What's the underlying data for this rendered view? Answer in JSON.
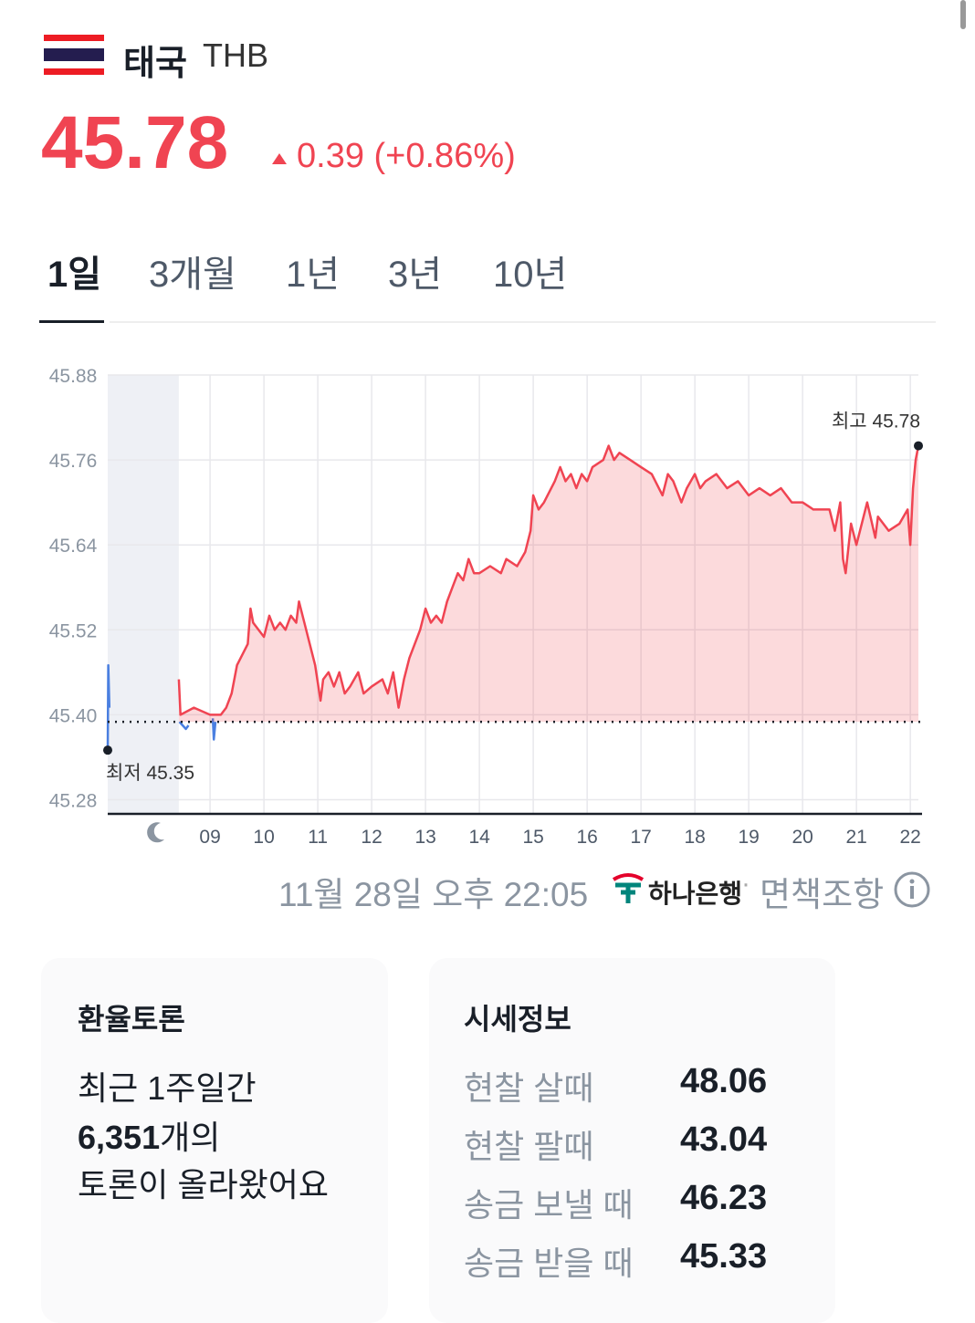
{
  "header": {
    "country": "태국",
    "code": "THB",
    "price": "45.78",
    "change": "0.39 (+0.86%)"
  },
  "tabs": [
    "1일",
    "3개월",
    "1년",
    "3년",
    "10년"
  ],
  "chart_data": {
    "type": "line",
    "xlim": [
      7.1,
      22.15
    ],
    "ylim": [
      45.26,
      45.88
    ],
    "xticks": [
      {
        "value": 9,
        "label": "09"
      },
      10,
      11,
      12,
      13,
      14,
      15,
      16,
      17,
      18,
      19,
      20,
      21,
      22
    ],
    "yticks": [
      45.28,
      {
        "value": 45.4,
        "label": "45.40"
      },
      45.52,
      45.64,
      45.76,
      45.88
    ],
    "grid": true,
    "baseline": 45.39,
    "shaded_xlim": [
      7.1,
      8.42
    ],
    "series": [
      {
        "color": "#4a7fe0",
        "area": false,
        "x": [
          7.1,
          7.11,
          7.13,
          7.14,
          8.43,
          8.55,
          8.6,
          8.62,
          9.05,
          9.07,
          9.1
        ],
        "values": [
          45.35,
          45.47,
          45.41,
          null,
          45.39,
          45.38,
          45.385,
          null,
          45.395,
          45.365,
          45.39
        ]
      },
      {
        "color": "#f04452",
        "area": true,
        "x": [
          8.42,
          8.45,
          8.7,
          9.0,
          9.2,
          9.3,
          9.4,
          9.5,
          9.7,
          9.75,
          9.8,
          9.9,
          10.0,
          10.1,
          10.2,
          10.3,
          10.4,
          10.5,
          10.6,
          10.65,
          10.75,
          10.85,
          10.95,
          11.05,
          11.1,
          11.2,
          11.3,
          11.4,
          11.5,
          11.6,
          11.75,
          11.85,
          12.0,
          12.2,
          12.3,
          12.4,
          12.5,
          12.6,
          12.7,
          12.9,
          13.0,
          13.1,
          13.2,
          13.3,
          13.4,
          13.5,
          13.6,
          13.7,
          13.8,
          13.9,
          14.0,
          14.2,
          14.4,
          14.5,
          14.7,
          14.85,
          14.95,
          15.0,
          15.1,
          15.2,
          15.4,
          15.5,
          15.6,
          15.7,
          15.8,
          15.9,
          16.0,
          16.1,
          16.3,
          16.4,
          16.5,
          16.6,
          16.8,
          17.0,
          17.2,
          17.4,
          17.5,
          17.6,
          17.75,
          17.85,
          18.0,
          18.1,
          18.2,
          18.4,
          18.6,
          18.8,
          19.0,
          19.2,
          19.4,
          19.6,
          19.8,
          20.0,
          20.2,
          20.5,
          20.6,
          20.7,
          20.75,
          20.8,
          20.9,
          21.0,
          21.2,
          21.35,
          21.4,
          21.6,
          21.8,
          21.95,
          22.0,
          22.05,
          22.1,
          22.15
        ],
        "values": [
          45.45,
          45.4,
          45.41,
          45.4,
          45.4,
          45.41,
          45.43,
          45.47,
          45.5,
          45.55,
          45.53,
          45.52,
          45.51,
          45.54,
          45.52,
          45.53,
          45.52,
          45.54,
          45.53,
          45.56,
          45.53,
          45.5,
          45.47,
          45.42,
          45.45,
          45.46,
          45.44,
          45.46,
          45.43,
          45.44,
          45.46,
          45.43,
          45.44,
          45.45,
          45.43,
          45.46,
          45.41,
          45.45,
          45.48,
          45.52,
          45.55,
          45.53,
          45.54,
          45.53,
          45.56,
          45.58,
          45.6,
          45.59,
          45.62,
          45.6,
          45.6,
          45.61,
          45.6,
          45.62,
          45.61,
          45.63,
          45.66,
          45.71,
          45.69,
          45.7,
          45.73,
          45.75,
          45.73,
          45.74,
          45.72,
          45.74,
          45.73,
          45.75,
          45.76,
          45.78,
          45.76,
          45.77,
          45.76,
          45.75,
          45.74,
          45.71,
          45.74,
          45.73,
          45.7,
          45.72,
          45.74,
          45.72,
          45.73,
          45.74,
          45.72,
          45.73,
          45.71,
          45.72,
          45.71,
          45.72,
          45.7,
          45.7,
          45.69,
          45.69,
          45.66,
          45.7,
          45.62,
          45.6,
          45.67,
          45.64,
          45.7,
          45.65,
          45.68,
          45.66,
          45.67,
          45.69,
          45.64,
          45.72,
          45.76,
          45.78
        ]
      }
    ],
    "annotations": [
      {
        "text": "최고 45.78",
        "x": 22.15,
        "y": 45.78
      },
      {
        "text": "최저 45.35",
        "x": 7.1,
        "y": 45.35
      }
    ]
  },
  "footer": {
    "time": "11월 28일 오후 22:05",
    "bank": "하나은행",
    "separator": "·",
    "disclaimer": "면책조항"
  },
  "discussion": {
    "title": "환율토론",
    "line1": "최근 1주일간",
    "count": "6,351",
    "count_suffix": "개의",
    "line3": "토론이 올라왔어요"
  },
  "rates": {
    "title": "시세정보",
    "rows": [
      [
        "현찰 살때",
        "48.06"
      ],
      [
        "현찰 팔때",
        "43.04"
      ],
      [
        "송금 보낼 때",
        "46.23"
      ],
      [
        "송금 받을 때",
        "45.33"
      ]
    ]
  }
}
